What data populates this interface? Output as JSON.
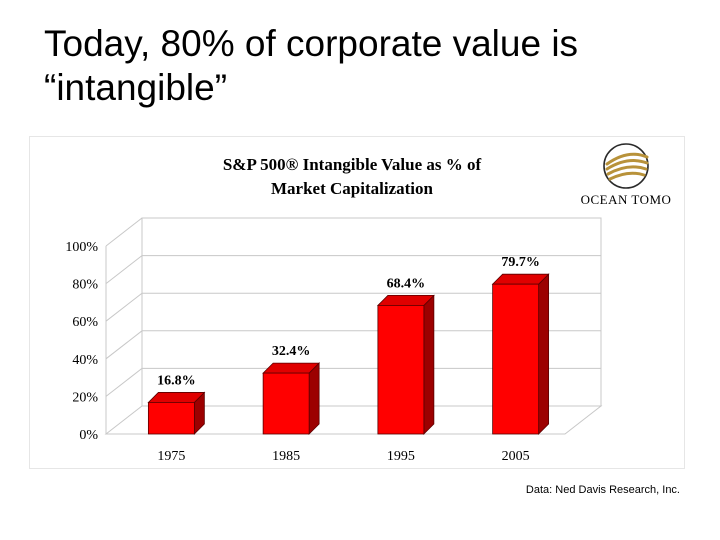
{
  "slide": {
    "title_line1": "Today, 80% of corporate value is",
    "title_line2": "“intangible”",
    "source": "Data: Ned Davis Research, Inc."
  },
  "logo": {
    "text": "OCEAN TOMO",
    "colors": {
      "gold": "#b8923a",
      "dark": "#2a2a2a"
    }
  },
  "chart_data": {
    "type": "bar",
    "title_line1": "S&P 500® Intangible Value as % of",
    "title_line2": "Market Capitalization",
    "categories": [
      "1975",
      "1985",
      "1995",
      "2005"
    ],
    "values": [
      16.8,
      32.4,
      68.4,
      79.7
    ],
    "data_labels": [
      "16.8%",
      "32.4%",
      "68.4%",
      "79.7%"
    ],
    "y_ticks": [
      "0%",
      "20%",
      "40%",
      "60%",
      "80%",
      "100%"
    ],
    "y_tick_values": [
      0,
      20,
      40,
      60,
      80,
      100
    ],
    "ylim": [
      0,
      100
    ],
    "grid": true,
    "style": "3d",
    "colors": {
      "bar_front": "#ff0000",
      "bar_side": "#9c0000",
      "bar_top": "#e00000",
      "grid": "#c8c8c8"
    }
  }
}
